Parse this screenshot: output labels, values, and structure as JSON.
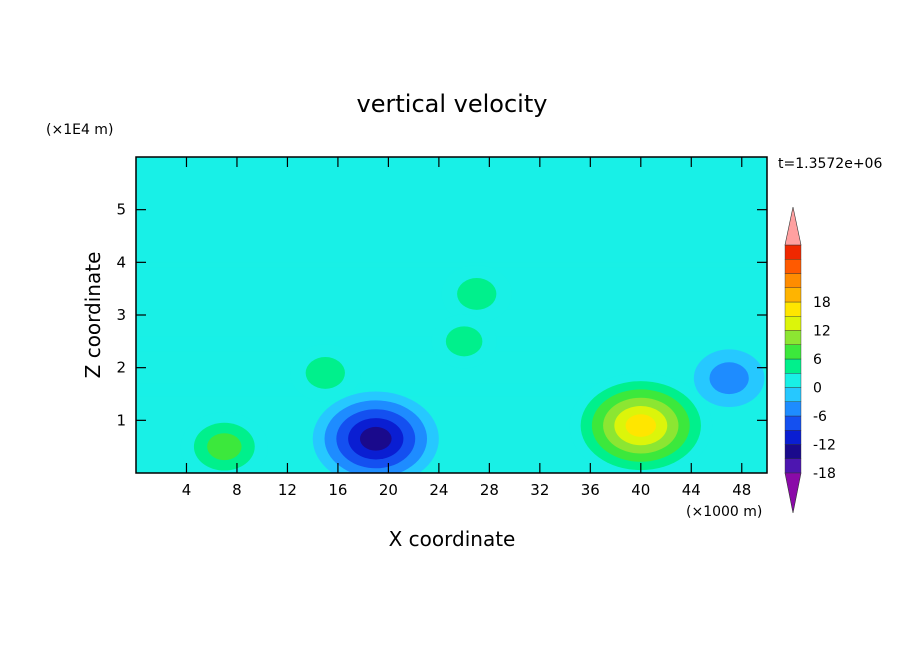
{
  "chart_data": {
    "type": "heatmap",
    "title": "vertical velocity",
    "xlabel": "X coordinate",
    "ylabel": "Z coordinate",
    "x_unit": "(×1000 m)",
    "y_unit": "(×1E4 m)",
    "xlim": [
      0,
      50
    ],
    "ylim": [
      0,
      6
    ],
    "x_ticks": [
      4,
      8,
      12,
      16,
      20,
      24,
      28,
      32,
      36,
      40,
      44,
      48
    ],
    "y_ticks": [
      1,
      2,
      3,
      4,
      5
    ],
    "time_label": "t=1.3572e+06",
    "grid": false,
    "colorbar": {
      "position": "right",
      "level_min": -21,
      "level_step": 3,
      "labels": [
        18,
        12,
        6,
        0,
        -6,
        -12,
        -18
      ],
      "colors": [
        "#8a0aa8",
        "#4d16b0",
        "#1a0a8c",
        "#0a1ed2",
        "#1450f0",
        "#1e8cff",
        "#26c8ff",
        "#19f0e6",
        "#00f08c",
        "#3ce83c",
        "#8ce632",
        "#dcf50a",
        "#ffe600",
        "#ffb400",
        "#ff8c00",
        "#ff5a00",
        "#f02800",
        "#ffa0a0"
      ]
    },
    "features": [
      {
        "x": 40,
        "z": 0.9,
        "value": 17
      },
      {
        "x": 19,
        "z": 0.65,
        "value": -14
      },
      {
        "x": 7,
        "z": 0.5,
        "value": 7
      },
      {
        "x": 15,
        "z": 1.9,
        "value": 4
      },
      {
        "x": 27,
        "z": 3.4,
        "value": 4
      },
      {
        "x": 26,
        "z": 2.5,
        "value": 3
      },
      {
        "x": 47,
        "z": 1.8,
        "value": -4
      }
    ]
  }
}
